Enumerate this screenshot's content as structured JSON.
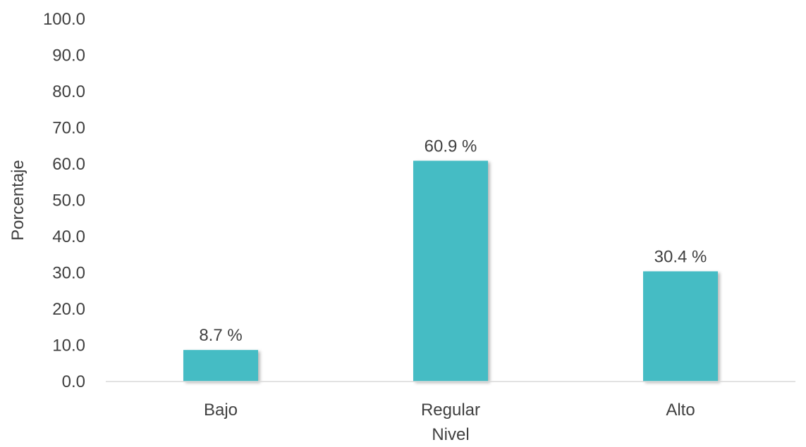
{
  "chart_data": {
    "type": "bar",
    "categories": [
      "Bajo",
      "Regular",
      "Alto"
    ],
    "values": [
      8.7,
      60.9,
      30.4
    ],
    "data_labels": [
      "8.7 %",
      "60.9 %",
      "30.4 %"
    ],
    "title": "",
    "xlabel": "Nivel",
    "ylabel": "Porcentaje",
    "ylim": [
      0,
      100
    ],
    "y_ticks": [
      0,
      10,
      20,
      30,
      40,
      50,
      60,
      70,
      80,
      90,
      100
    ],
    "y_tick_labels": [
      "0.0",
      "10.0",
      "20.0",
      "30.0",
      "40.0",
      "50.0",
      "60.0",
      "70.0",
      "80.0",
      "90.0",
      "100.0"
    ],
    "grid": false,
    "legend": "none",
    "bar_color": "#45BCC4"
  }
}
